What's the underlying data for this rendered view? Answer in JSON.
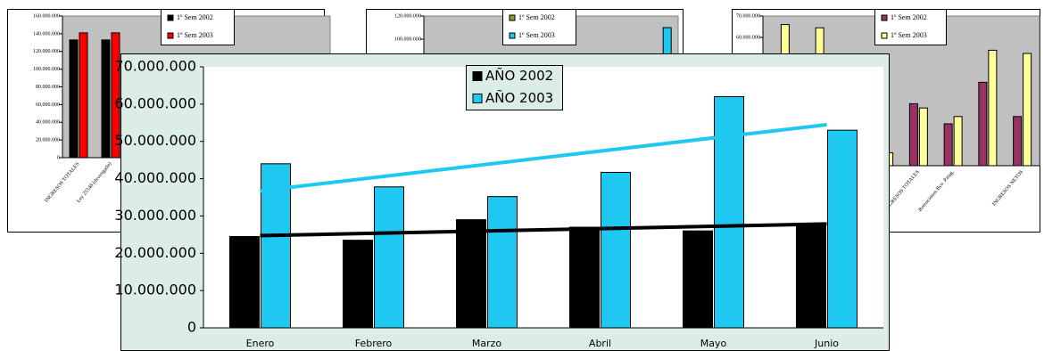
{
  "chart_data": [
    {
      "type": "bar",
      "trendline": true,
      "categories": [
        "Enero",
        "Febrero",
        "Marzo",
        "Abril",
        "Mayo",
        "Junio"
      ],
      "series": [
        {
          "name": "AÑO 2002",
          "color": "#000000",
          "values": [
            24500000,
            23500000,
            29000000,
            27000000,
            26000000,
            27800000
          ]
        },
        {
          "name": "AÑO 2003",
          "color": "#1ec8f0",
          "values": [
            44000000,
            37800000,
            35200000,
            41700000,
            62000000,
            53000000
          ]
        }
      ],
      "ylim": [
        0,
        70000000
      ],
      "yticks": [
        0,
        {
          "value": 10000000,
          "label": "10.000.000"
        },
        {
          "value": 20000000,
          "label": "20.000.000"
        },
        {
          "value": 30000000,
          "label": "30.000.000"
        },
        {
          "value": 40000000,
          "label": "40.000.000"
        },
        {
          "value": 50000000,
          "label": "50.000.000"
        },
        {
          "value": 60000000,
          "label": "60.000.000"
        },
        {
          "value": 70000000,
          "label": "70.000.000"
        }
      ]
    },
    {
      "type": "bar",
      "categories": [
        "INGRESOS TOTALES",
        "Ley 25548 (devengado)"
      ],
      "series": [
        {
          "name": "1º Sem 2002",
          "color": "#000000",
          "values": [
            133000000,
            133000000
          ]
        },
        {
          "name": "1º Sem 2003",
          "color": "#ff0000",
          "values": [
            141000000,
            141000000
          ]
        }
      ],
      "ylim": [
        0,
        160000000
      ],
      "yticks": [
        0,
        {
          "value": 20000000,
          "label": "20.000.000"
        },
        {
          "value": 40000000,
          "label": "40.000.000"
        },
        {
          "value": 60000000,
          "label": "60.000.000"
        },
        {
          "value": 80000000,
          "label": "80.000.000"
        },
        {
          "value": 100000000,
          "label": "100.000.000"
        },
        {
          "value": 120000000,
          "label": "120.000.000"
        },
        {
          "value": 140000000,
          "label": "140.000.000"
        },
        {
          "value": 160000000,
          "label": "160.000.000"
        }
      ]
    },
    {
      "type": "bar",
      "categories": [
        null,
        null,
        null,
        null,
        null,
        null,
        null,
        null
      ],
      "series": [
        {
          "name": "1º Sem 2002",
          "color": "#999933",
          "values": [
            null,
            null,
            null,
            null,
            null,
            null,
            null,
            null
          ]
        },
        {
          "name": "1º Sem 2003",
          "color": "#1ec8f0",
          "values": [
            null,
            null,
            null,
            null,
            null,
            null,
            null,
            110000000
          ]
        }
      ],
      "ylim": [
        0,
        120000000
      ],
      "yticks": [
        {
          "value": 100000000,
          "label": "100.000.000"
        },
        {
          "value": 120000000,
          "label": "120.000.000"
        }
      ]
    },
    {
      "type": "bar",
      "categories": [
        null,
        null,
        null,
        null,
        "EGRESOS TOTALES",
        "Retenciones Bco. Patag.",
        null,
        "INGRESOS NETOS"
      ],
      "series": [
        {
          "name": "1º Sem 2002",
          "color": "#993366",
          "values": [
            null,
            null,
            null,
            4000000,
            29000000,
            19600000,
            39000000,
            23000000
          ]
        },
        {
          "name": "1º Sem 2003",
          "color": "#ffff99",
          "values": [
            66000000,
            64500000,
            null,
            6000000,
            27000000,
            23000000,
            54000000,
            52500000
          ]
        }
      ],
      "ylim": [
        0,
        70000000
      ],
      "yticks": [
        {
          "value": 60000000,
          "label": "60.000.000"
        },
        {
          "value": 70000000,
          "label": "70.000.000"
        }
      ]
    }
  ]
}
